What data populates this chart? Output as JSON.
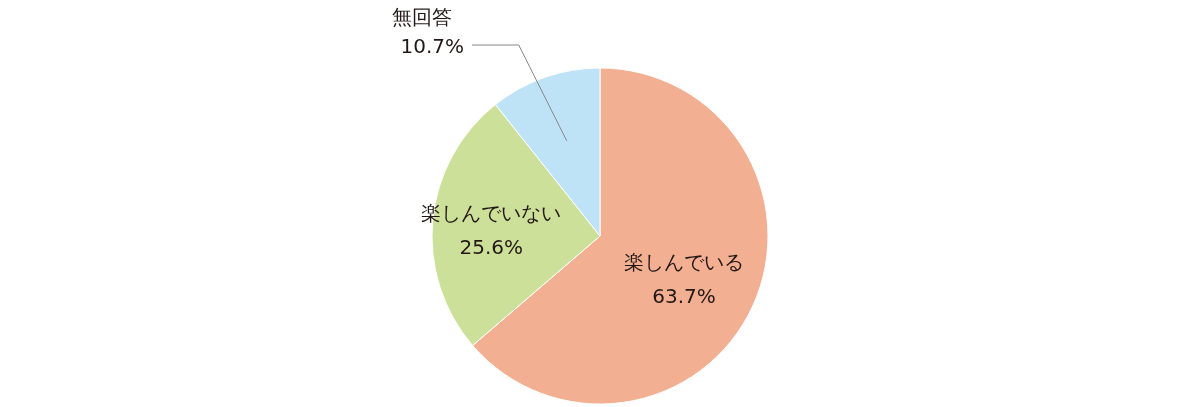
{
  "chart_data": {
    "type": "pie",
    "categories": [
      "楽しんでいる",
      "楽しんでいない",
      "無回答"
    ],
    "values": [
      63.7,
      25.6,
      10.7
    ],
    "colors": [
      "#f3af92",
      "#cde09a",
      "#bee3f7"
    ],
    "value_labels": [
      "63.7%",
      "25.6%",
      "10.7%"
    ]
  }
}
